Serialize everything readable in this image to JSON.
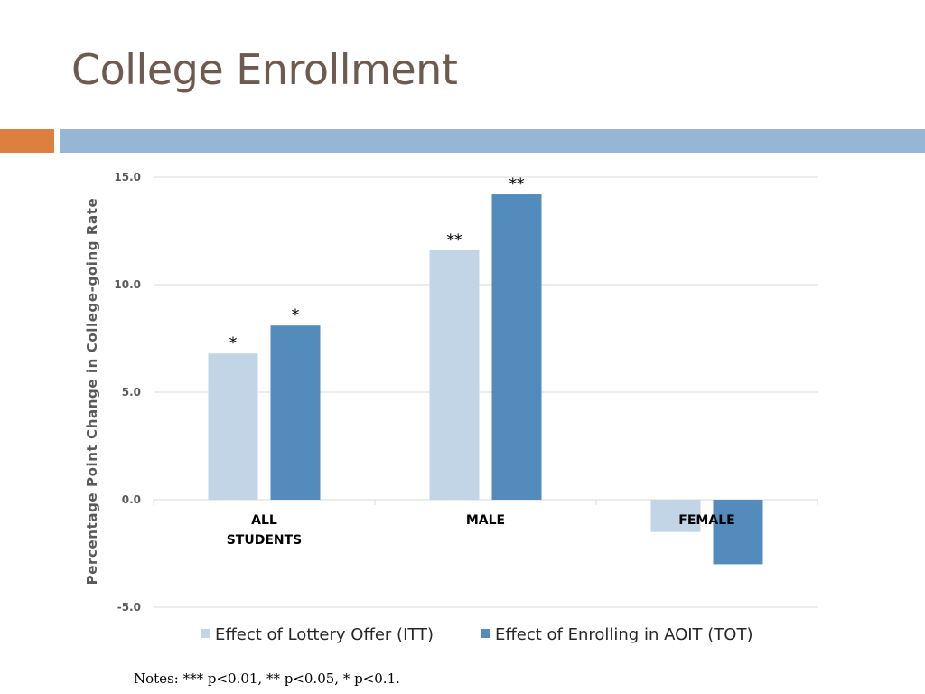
{
  "slide": {
    "title": "College Enrollment",
    "notes": "Notes: *** p<0.01, ** p<0.05, * p<0.1."
  },
  "colors": {
    "title": "#6f5a4f",
    "accent_bar": "#dc7f3f",
    "rule_bar": "#97b6d6",
    "itt": "#c2d5e6",
    "tot": "#538bbd",
    "gridline": "#d9d9d9"
  },
  "chart_data": {
    "type": "bar",
    "ylabel": "Percentage Point Change in College-going Rate",
    "ylim": [
      -5,
      15
    ],
    "yticks": [
      {
        "value": 15,
        "label": "15.0"
      },
      {
        "value": 10,
        "label": "10.0"
      },
      {
        "value": 5,
        "label": "5.0"
      },
      {
        "value": 0,
        "label": "0.0"
      },
      {
        "value": -5,
        "label": "-5.0"
      }
    ],
    "grid": true,
    "legend_position": "bottom",
    "categories": [
      {
        "lines": [
          "ALL",
          "STUDENTS"
        ]
      },
      {
        "lines": [
          "MALE"
        ]
      },
      {
        "lines": [
          "FEMALE"
        ]
      }
    ],
    "series": [
      {
        "name": "Effect of Lottery Offer (ITT)",
        "color": "#c2d5e6",
        "values": [
          6.8,
          11.6,
          -1.5
        ],
        "labels": [
          "*",
          "**",
          ""
        ]
      },
      {
        "name": "Effect of Enrolling in AOIT (TOT)",
        "color": "#538bbd",
        "values": [
          8.1,
          14.2,
          -3.0
        ],
        "labels": [
          "*",
          "**",
          ""
        ]
      }
    ]
  }
}
